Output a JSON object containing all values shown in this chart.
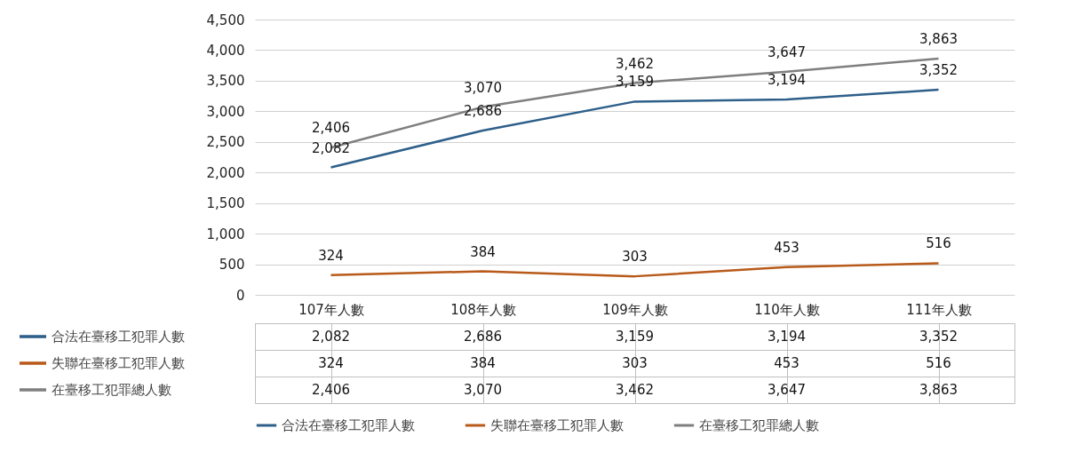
{
  "chart_data": {
    "type": "line",
    "categories": [
      "107年人數",
      "108年人數",
      "109年人數",
      "110年人數",
      "111年人數"
    ],
    "series": [
      {
        "name": "合法在臺移工犯罪人數",
        "color": "#2e5f8a",
        "values": [
          2082,
          2686,
          3159,
          3194,
          3352
        ],
        "value_labels": [
          "2,082",
          "2,686",
          "3,159",
          "3,194",
          "3,352"
        ]
      },
      {
        "name": "失聯在臺移工犯罪人數",
        "color": "#b85a1a",
        "values": [
          324,
          384,
          303,
          453,
          516
        ],
        "value_labels": [
          "324",
          "384",
          "303",
          "453",
          "516"
        ]
      },
      {
        "name": "在臺移工犯罪總人數",
        "color": "#7f7f7f",
        "values": [
          2406,
          3070,
          3462,
          3647,
          3863
        ],
        "value_labels": [
          "2,406",
          "3,070",
          "3,462",
          "3,647",
          "3,863"
        ]
      }
    ],
    "ylim": [
      0,
      4500
    ],
    "yticks": [
      0,
      {
        "value": 500,
        "label": "500"
      },
      {
        "value": 1000,
        "label": "1,000"
      },
      {
        "value": 1500,
        "label": "1,500"
      },
      {
        "value": 2000,
        "label": "2,000"
      },
      {
        "value": 2500,
        "label": "2,500"
      },
      {
        "value": 3000,
        "label": "3,000"
      },
      {
        "value": 3500,
        "label": "3,500"
      },
      {
        "value": 4000,
        "label": "4,000"
      },
      {
        "value": 4500,
        "label": "4,500"
      }
    ],
    "grid": "y",
    "legend": "bottom"
  }
}
